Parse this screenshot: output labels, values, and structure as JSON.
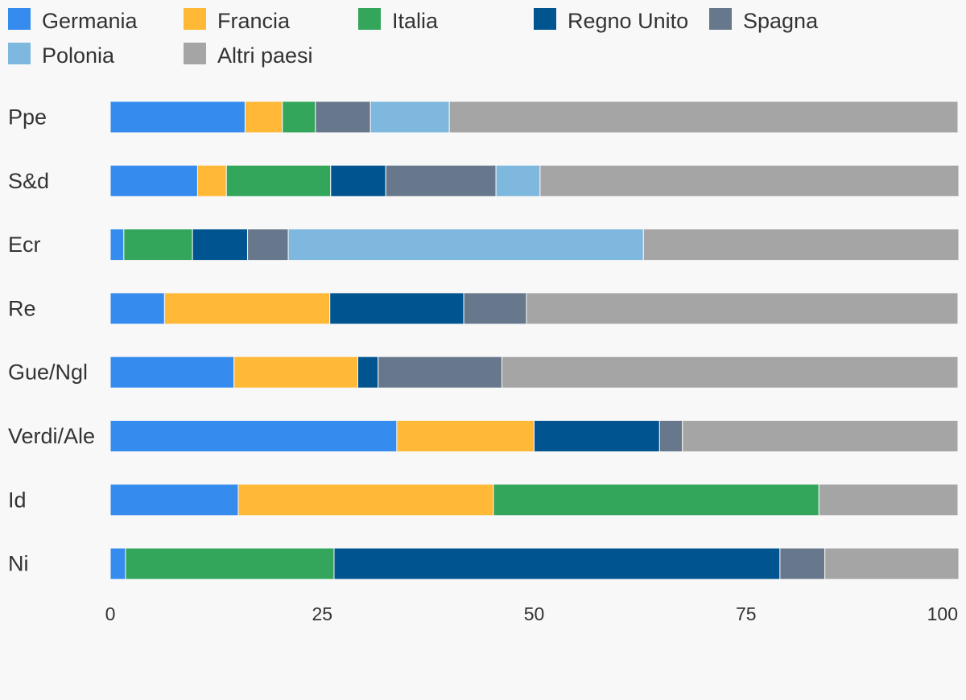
{
  "chart_data": {
    "type": "bar",
    "orientation": "horizontal",
    "stacked": true,
    "title": "",
    "xlabel": "",
    "ylabel": "",
    "xlim": [
      0,
      100
    ],
    "x_ticks": [
      "0",
      "25",
      "50",
      "75",
      "100"
    ],
    "grid": false,
    "legend_position": "top",
    "categories": [
      "Ppe",
      "S&d",
      "Ecr",
      "Re",
      "Gue/Ngl",
      "Verdi/Ale",
      "Id",
      "Ni"
    ],
    "series": [
      {
        "name": "Germania",
        "color": "#368cee",
        "values": [
          15.9,
          10.3,
          1.6,
          6.4,
          14.6,
          33.8,
          15.1,
          1.8
        ]
      },
      {
        "name": "Francia",
        "color": "#ffb937",
        "values": [
          4.4,
          3.4,
          0,
          19.5,
          14.6,
          16.2,
          30.1,
          0
        ]
      },
      {
        "name": "Italia",
        "color": "#33a65c",
        "values": [
          3.9,
          12.3,
          8.1,
          0,
          0,
          0,
          38.4,
          24.6
        ]
      },
      {
        "name": "Regno Unito",
        "color": "#00548f",
        "values": [
          0,
          6.5,
          6.5,
          15.8,
          2.4,
          14.8,
          0,
          52.6
        ]
      },
      {
        "name": "Spagna",
        "color": "#67788c",
        "values": [
          6.5,
          13.0,
          4.8,
          7.4,
          14.6,
          2.7,
          0,
          5.3
        ]
      },
      {
        "name": "Polonia",
        "color": "#7eb8de",
        "values": [
          9.3,
          5.2,
          41.9,
          0,
          0,
          0,
          0,
          0
        ]
      },
      {
        "name": "Altri paesi",
        "color": "#a5a5a5",
        "values": [
          60.0,
          49.4,
          37.2,
          50.9,
          53.8,
          32.5,
          16.4,
          15.8
        ]
      }
    ]
  }
}
